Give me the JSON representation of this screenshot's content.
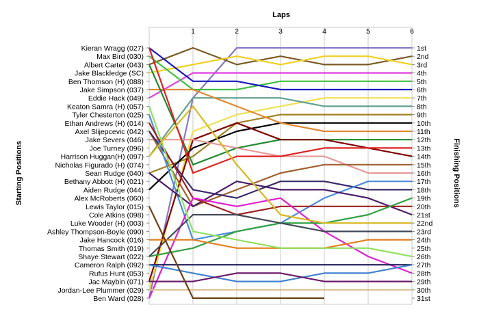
{
  "chart_data": {
    "type": "line",
    "xlabel": "Laps",
    "y_left_label": "Starting Positions",
    "y_right_label": "Finishing Positions",
    "x_ticks": [
      "1",
      "2",
      "3",
      "4",
      "5",
      "6"
    ],
    "starting_positions": [
      "Kieran Wragg (027)",
      "Max Bird (030)",
      "Albert Carter (043)",
      "Jake Blackledge (SC)",
      "Ben Thomson (H) (088)",
      "Jake Simpson (037)",
      "Eddie Hack (049)",
      "Keaton Samra (H) (057)",
      "Tyler Chesterton (025)",
      "Ethan Andrews (H) (014)",
      "Axel Slijepcevic (042)",
      "Jake Severs (046)",
      "Joe Turney (096)",
      "Harrison Huggan(H) (097)",
      "Nicholas Figurado (H) (074)",
      "Sean Rudge (040)",
      "Bethany Abbott (H) (021)",
      "Aiden Rudge (044)",
      "Alex McRoberts (060)",
      "Lewis Taylor (015)",
      "Cole Atkins (098)",
      "Luke Wooder (H) (003)",
      "Ashley Thompson-Boyle (090)",
      "Jake Hancock (016)",
      "Thomas Smith (019)",
      "Shaye Stewart (022)",
      "Cameron Ralph (092)",
      "Rufus Hunt (053)",
      "Jac Maybin (071)",
      "Jordan-Lee Plummer (029)",
      "Ben Ward (028)"
    ],
    "finishing_positions": [
      "1st",
      "2nd",
      "3rd",
      "4th",
      "5th",
      "6th",
      "7th",
      "8th",
      "9th",
      "10th",
      "11th",
      "12th",
      "13th",
      "14th",
      "15th",
      "16th",
      "17th",
      "18th",
      "19th",
      "20th",
      "21st",
      "22nd",
      "23rd",
      "24th",
      "25th",
      "26th",
      "27th",
      "28th",
      "29th",
      "30th",
      "31st"
    ],
    "series": [
      {
        "color": "#8878c8",
        "values": [
          31,
          7,
          1,
          1,
          1,
          1,
          1
        ]
      },
      {
        "color": "#7a5a20",
        "values": [
          3,
          1,
          3,
          2,
          3,
          3,
          2
        ]
      },
      {
        "color": "#f0d020",
        "values": [
          4,
          3,
          2,
          3,
          2,
          2,
          3
        ]
      },
      {
        "color": "#e040e0",
        "values": [
          7,
          4,
          4,
          4,
          4,
          4,
          4
        ]
      },
      {
        "color": "#40c040",
        "values": [
          2,
          6,
          6,
          5,
          5,
          5,
          5
        ]
      },
      {
        "color": "#1818c0",
        "values": [
          1,
          5,
          5,
          6,
          6,
          6,
          6
        ]
      },
      {
        "color": "#f0e050",
        "values": [
          30,
          11,
          9,
          8,
          7,
          7,
          7
        ]
      },
      {
        "color": "#60a090",
        "values": [
          14,
          7,
          7,
          7,
          8,
          8,
          8
        ]
      },
      {
        "color": "#a08020",
        "values": [
          16,
          14,
          10,
          9,
          9,
          9,
          9
        ]
      },
      {
        "color": "#000000",
        "values": [
          18,
          13,
          11,
          10,
          10,
          10,
          10
        ]
      },
      {
        "color": "#e08830",
        "values": [
          6,
          6,
          8,
          10,
          11,
          11,
          11
        ]
      },
      {
        "color": "#208830",
        "values": [
          3,
          15,
          13,
          12,
          12,
          12,
          12
        ]
      },
      {
        "color": "#800000",
        "values": [
          29,
          12,
          10,
          12,
          12,
          13,
          14
        ]
      },
      {
        "color": "#e89898",
        "values": [
          12,
          12,
          13,
          14,
          14,
          16,
          16
        ]
      },
      {
        "color": "#e02020",
        "values": [
          1,
          16,
          14,
          14,
          13,
          13,
          13
        ]
      },
      {
        "color": "#a06030",
        "values": [
          11,
          20,
          18,
          16,
          15,
          15,
          15
        ]
      },
      {
        "color": "#3a2a6a",
        "values": [
          11,
          18,
          19,
          17,
          17,
          18,
          18
        ]
      },
      {
        "color": "#4a8adc",
        "values": [
          9,
          24,
          23,
          22,
          19,
          17,
          17
        ]
      },
      {
        "color": "#4a1a6a",
        "values": [
          16,
          20,
          17,
          18,
          18,
          19,
          21
        ]
      },
      {
        "color": "#a02020",
        "values": [
          10,
          19,
          21,
          20,
          20,
          20,
          20
        ]
      },
      {
        "color": "#e020d0",
        "values": [
          31,
          19,
          20,
          19,
          23,
          26,
          28
        ]
      },
      {
        "color": "#30a040",
        "values": [
          26,
          25,
          23,
          22,
          22,
          21,
          19
        ]
      },
      {
        "color": "#404858",
        "values": [
          26,
          21,
          21,
          22,
          23,
          23,
          23
        ]
      },
      {
        "color": "#d8b820",
        "values": [
          14,
          8,
          15,
          21,
          22,
          22,
          22
        ]
      },
      {
        "color": "#e08020",
        "values": [
          24,
          24,
          25,
          25,
          25,
          24,
          24
        ]
      },
      {
        "color": "#90e060",
        "values": [
          8,
          23,
          24,
          25,
          25,
          25,
          26
        ]
      },
      {
        "color": "#20205a",
        "values": [
          27,
          27,
          27,
          27,
          27,
          27,
          27
        ]
      },
      {
        "color": "#4080d0",
        "values": [
          27,
          28,
          29,
          29,
          28,
          28,
          27
        ]
      },
      {
        "color": "#6a1a6a",
        "values": [
          29,
          29,
          28,
          28,
          29,
          29,
          29
        ]
      },
      {
        "color": "#d8c090",
        "values": [
          30,
          30,
          30,
          30,
          30,
          30,
          30
        ]
      },
      {
        "color": "#6a4010",
        "values": [
          20,
          31,
          31,
          31,
          31
        ]
      }
    ]
  }
}
